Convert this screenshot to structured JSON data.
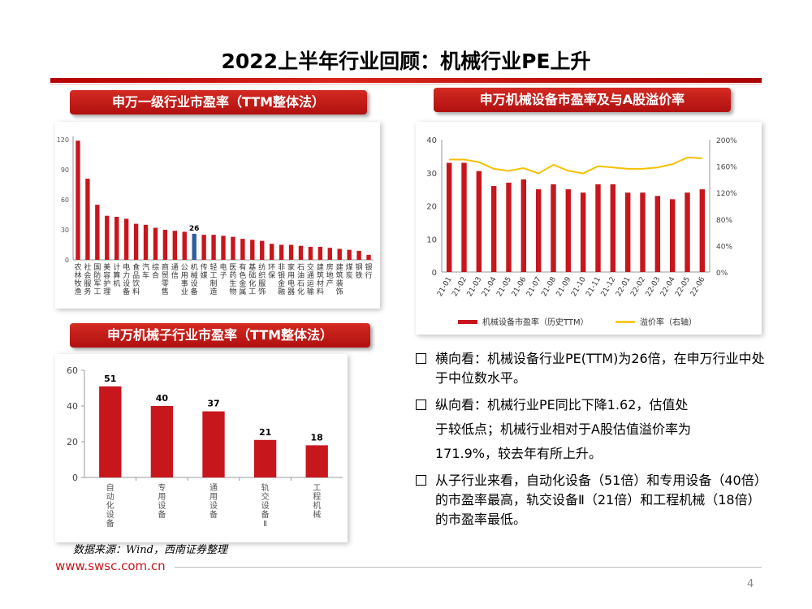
{
  "page": {
    "title": "2022上半年行业回顾：机械行业PE上升",
    "source": "数据来源：Wind，西南证券整理",
    "website": "www.swsc.com.cn",
    "page_number": "4",
    "accent_color": "#c8161d",
    "line_color": "#f5c000"
  },
  "labels": {
    "chart1": "申万一级行业市盈率（TTM整体法）",
    "chart2": "申万机械设备市盈率及与A股溢价率",
    "chart3": "申万机械子行业市盈率（TTM整体法）"
  },
  "bullets": {
    "b1": "横向看：机械设备行业PE(TTM)为26倍，在申万行业中处于中位数水平。",
    "b2_l1": "纵向看：机械行业PE同比下降1.62，估值处",
    "b2_l2": "于较低点；机械行业相对于A股估值溢价率为",
    "b2_l3": "171.9%，较去年有所上升。",
    "b3": "从子行业来看，自动化设备（51倍）和专用设备（40倍）的市盈率最高，轨交设备Ⅱ（21倍）和工程机械（18倍）的市盈率最低。"
  },
  "chart_data": [
    {
      "type": "bar",
      "title": "申万一级行业市盈率（TTM整体法）",
      "categories": [
        "农林牧渔",
        "社会服务",
        "国防军工",
        "美容护理",
        "计算机",
        "电力设备",
        "食品饮料",
        "汽车",
        "综合",
        "商贸零售",
        "通信",
        "公用事业",
        "机械设备",
        "传媒",
        "轻工制造",
        "电子",
        "医药生物",
        "有色金属",
        "基础化工",
        "纺织服饰",
        "环保",
        "非银金融",
        "家用电器",
        "石油石化",
        "交通运输",
        "建筑材料",
        "房地产",
        "建筑装饰",
        "煤炭",
        "钢铁",
        "银行"
      ],
      "values": [
        119,
        81,
        55,
        44,
        43,
        41,
        36,
        35,
        32,
        30,
        29,
        28,
        26,
        25,
        25,
        24,
        23,
        21,
        20,
        19,
        16,
        15,
        15,
        14,
        13,
        13,
        12,
        11,
        10,
        9,
        5
      ],
      "highlight": "机械设备",
      "highlight_label": "26",
      "yticks": [
        0,
        30,
        60,
        90,
        120
      ],
      "ylim": [
        0,
        120
      ]
    },
    {
      "type": "bar+line",
      "title": "申万机械设备市盈率及与A股溢价率",
      "categories": [
        "21-01",
        "21-02",
        "21-03",
        "21-04",
        "21-05",
        "21-06",
        "21-07",
        "21-08",
        "21-09",
        "21-10",
        "21-11",
        "21-12",
        "22-01",
        "22-02",
        "22-03",
        "22-04",
        "22-05",
        "22-06"
      ],
      "series": [
        {
          "name": "机械设备市盈率（历史TTM）",
          "type": "bar",
          "axis": "left",
          "values": [
            33,
            33,
            30.5,
            26,
            27,
            28,
            25,
            26.5,
            25,
            24,
            26.5,
            26.5,
            24,
            24,
            23,
            22,
            24,
            25
          ]
        },
        {
          "name": "溢价率（右轴）",
          "type": "line",
          "axis": "right",
          "values": [
            170,
            170,
            166,
            156,
            153,
            157,
            149,
            162,
            153,
            149,
            160,
            158,
            156,
            156,
            158,
            163,
            173,
            172
          ]
        }
      ],
      "y_left": {
        "ticks": [
          0,
          10,
          20,
          30,
          40
        ],
        "ylim": [
          0,
          40
        ]
      },
      "y_right": {
        "ticks": [
          "0%",
          "40%",
          "80%",
          "120%",
          "160%",
          "200%"
        ],
        "ylim": [
          0,
          200
        ]
      }
    },
    {
      "type": "bar",
      "title": "申万机械子行业市盈率（TTM整体法）",
      "categories": [
        "自动化设备",
        "专用设备",
        "通用设备",
        "轨交设备Ⅱ",
        "工程机械"
      ],
      "values": [
        51,
        40,
        37,
        21,
        18
      ],
      "value_labels": [
        "51",
        "40",
        "37",
        "21",
        "18"
      ],
      "yticks": [
        0,
        20,
        40,
        60
      ],
      "ylim": [
        0,
        60
      ]
    }
  ]
}
